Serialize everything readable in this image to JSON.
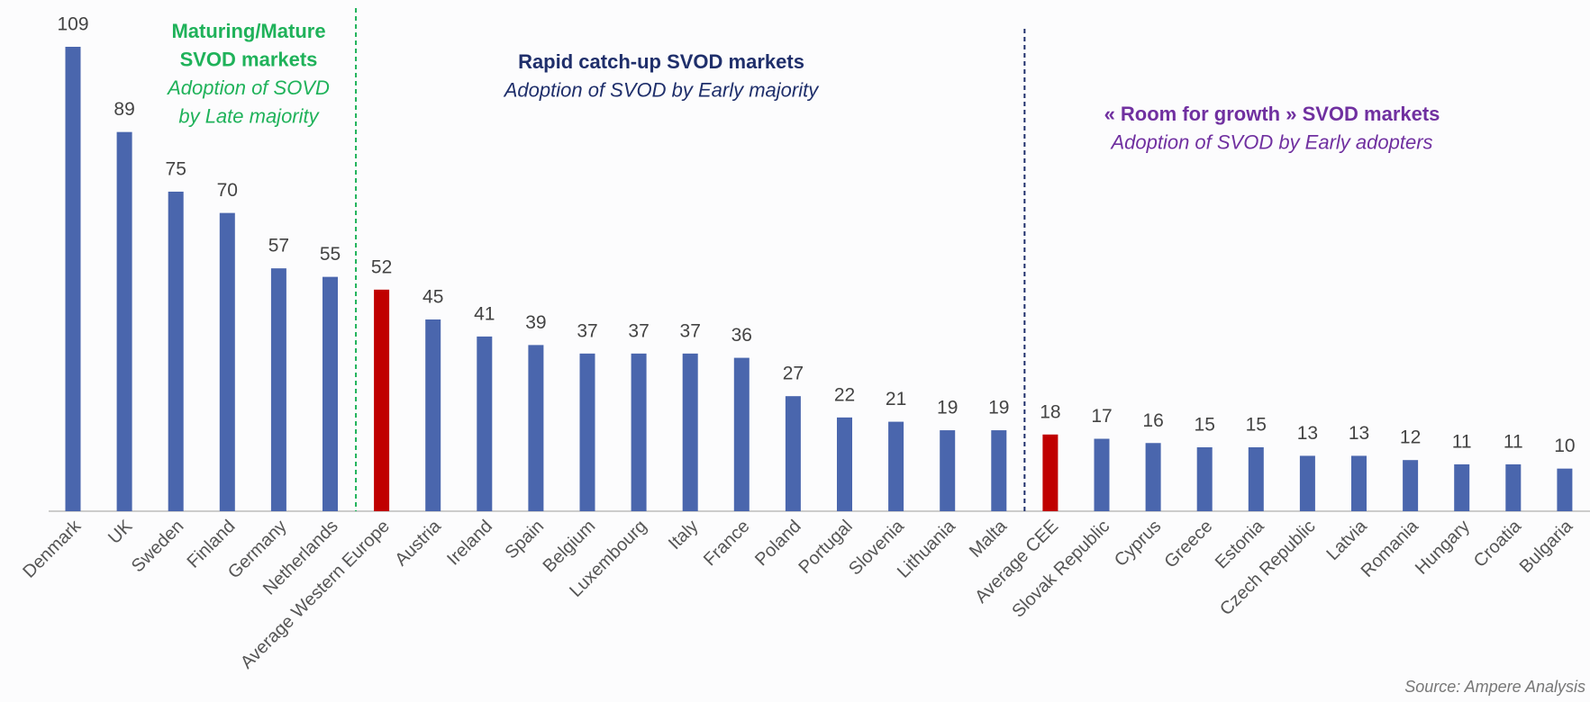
{
  "chart_data": {
    "type": "bar",
    "categories": [
      "Denmark",
      "UK",
      "Sweden",
      "Finland",
      "Germany",
      "Netherlands",
      "Average Western Europe",
      "Austria",
      "Ireland",
      "Spain",
      "Belgium",
      "Luxembourg",
      "Italy",
      "France",
      "Poland",
      "Portugal",
      "Slovenia",
      "Lithuania",
      "Malta",
      "Average CEE",
      "Slovak Republic",
      "Cyprus",
      "Greece",
      "Estonia",
      "Czech Republic",
      "Latvia",
      "Romania",
      "Hungary",
      "Croatia",
      "Bulgaria"
    ],
    "values": [
      109,
      89,
      75,
      70,
      57,
      55,
      52,
      45,
      41,
      39,
      37,
      37,
      37,
      36,
      27,
      22,
      21,
      19,
      19,
      18,
      17,
      16,
      15,
      15,
      13,
      13,
      12,
      11,
      11,
      10
    ],
    "colors": [
      "#4a66ad",
      "#4a66ad",
      "#4a66ad",
      "#4a66ad",
      "#4a66ad",
      "#4a66ad",
      "#c00000",
      "#4a66ad",
      "#4a66ad",
      "#4a66ad",
      "#4a66ad",
      "#4a66ad",
      "#4a66ad",
      "#4a66ad",
      "#4a66ad",
      "#4a66ad",
      "#4a66ad",
      "#4a66ad",
      "#4a66ad",
      "#c00000",
      "#4a66ad",
      "#4a66ad",
      "#4a66ad",
      "#4a66ad",
      "#4a66ad",
      "#4a66ad",
      "#4a66ad",
      "#4a66ad",
      "#4a66ad",
      "#4a66ad"
    ],
    "annotations": [
      {
        "title": [
          "Maturing/Mature",
          "SVOD markets"
        ],
        "subtitle": [
          "Adoption of SOVD",
          "by Late majority"
        ],
        "color": "#1fb25a"
      },
      {
        "title": [
          "Rapid catch-up SVOD markets"
        ],
        "subtitle": [
          "Adoption of SVOD by Early majority"
        ],
        "color": "#1f2f6b"
      },
      {
        "title": [
          "« Room for growth » SVOD markets"
        ],
        "subtitle": [
          "Adoption of SVOD by Early adopters"
        ],
        "color": "#7030a0"
      }
    ],
    "dividers": [
      {
        "after": 5,
        "color": "#1fb25a"
      },
      {
        "after": 18,
        "color": "#1f2f6b"
      }
    ],
    "source": "Source: Ampere Analysis"
  }
}
